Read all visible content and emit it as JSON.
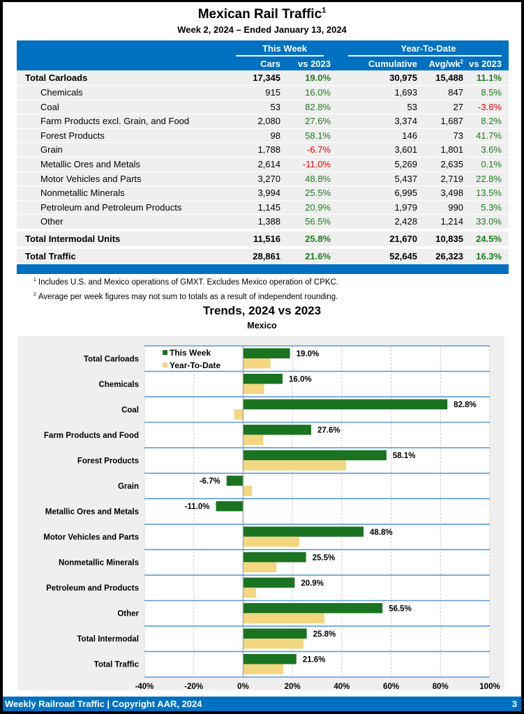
{
  "header": {
    "title": "Mexican Rail Traffic",
    "title_footnote": "1",
    "subtitle": "Week 2, 2024 – Ended January 13, 2024"
  },
  "table": {
    "group_headers": [
      "This Week",
      "Year-To-Date"
    ],
    "columns": [
      "Cars",
      "vs 2023",
      "Cumulative",
      "Avg/wk",
      "vs 2023"
    ],
    "avg_footnote": "2",
    "rows": [
      {
        "label": "Total Carloads",
        "type": "total",
        "cars": "17,345",
        "vs": "19.0%",
        "cum": "30,975",
        "avg": "15,488",
        "ytd": "11.1%"
      },
      {
        "label": "Chemicals",
        "type": "sub",
        "cars": "915",
        "vs": "16.0%",
        "cum": "1,693",
        "avg": "847",
        "ytd": "8.5%"
      },
      {
        "label": "Coal",
        "type": "sub",
        "cars": "53",
        "vs": "82.8%",
        "cum": "53",
        "avg": "27",
        "ytd": "-3.6%"
      },
      {
        "label": "Farm Products excl. Grain, and Food",
        "type": "sub",
        "cars": "2,080",
        "vs": "27.6%",
        "cum": "3,374",
        "avg": "1,687",
        "ytd": "8.2%"
      },
      {
        "label": "Forest Products",
        "type": "sub",
        "cars": "98",
        "vs": "58.1%",
        "cum": "146",
        "avg": "73",
        "ytd": "41.7%"
      },
      {
        "label": "Grain",
        "type": "sub",
        "cars": "1,788",
        "vs": "-6.7%",
        "cum": "3,601",
        "avg": "1,801",
        "ytd": "3.6%"
      },
      {
        "label": "Metallic Ores and Metals",
        "type": "sub",
        "cars": "2,614",
        "vs": "-11.0%",
        "cum": "5,269",
        "avg": "2,635",
        "ytd": "0.1%"
      },
      {
        "label": "Motor Vehicles and Parts",
        "type": "sub",
        "cars": "3,270",
        "vs": "48.8%",
        "cum": "5,437",
        "avg": "2,719",
        "ytd": "22.8%"
      },
      {
        "label": "Nonmetallic Minerals",
        "type": "sub",
        "cars": "3,994",
        "vs": "25.5%",
        "cum": "6,995",
        "avg": "3,498",
        "ytd": "13.5%"
      },
      {
        "label": "Petroleum and Petroleum Products",
        "type": "sub",
        "cars": "1,145",
        "vs": "20.9%",
        "cum": "1,979",
        "avg": "990",
        "ytd": "5.3%"
      },
      {
        "label": "Other",
        "type": "sub",
        "cars": "1,388",
        "vs": "56.5%",
        "cum": "2,428",
        "avg": "1,214",
        "ytd": "33.0%"
      },
      {
        "label": "Total Intermodal Units",
        "type": "total",
        "cars": "11,516",
        "vs": "25.8%",
        "cum": "21,670",
        "avg": "10,835",
        "ytd": "24.5%"
      },
      {
        "label": "Total Traffic",
        "type": "total",
        "cars": "28,861",
        "vs": "21.6%",
        "cum": "52,645",
        "avg": "26,323",
        "ytd": "16.3%"
      }
    ]
  },
  "notes": [
    {
      "mark": "1",
      "text": "Includes U.S. and Mexico operations of GMXT. Excludes Mexico operation of CPKC."
    },
    {
      "mark": "2",
      "text": "Average per week figures may not sum to totals as a result of independent rounding."
    }
  ],
  "colors": {
    "brand_blue": "#0070c0",
    "positive": "#1e7b1e",
    "negative": "#e00000",
    "this_week_bar": "#1a7320",
    "ytd_bar": "#f2d680",
    "row_line": "#5b9bd5"
  },
  "chart_data": {
    "type": "bar",
    "orientation": "horizontal",
    "title": "Trends, 2024 vs 2023",
    "subtitle": "Mexico",
    "categories": [
      "Total Carloads",
      "Chemicals",
      "Coal",
      "Farm Products and Food",
      "Forest Products",
      "Grain",
      "Metallic Ores and Metals",
      "Motor Vehicles and Parts",
      "Nonmetallic Minerals",
      "Petroleum and Products",
      "Other",
      "Total Intermodal",
      "Total Traffic"
    ],
    "series": [
      {
        "name": "This Week",
        "values": [
          19.0,
          16.0,
          82.8,
          27.6,
          58.1,
          -6.7,
          -11.0,
          48.8,
          25.5,
          20.9,
          56.5,
          25.8,
          21.6
        ],
        "labels": [
          "19.0%",
          "16.0%",
          "82.8%",
          "27.6%",
          "58.1%",
          "-6.7%",
          "-11.0%",
          "48.8%",
          "25.5%",
          "20.9%",
          "56.5%",
          "25.8%",
          "21.6%"
        ]
      },
      {
        "name": "Year-To-Date",
        "values": [
          11.1,
          8.5,
          -3.6,
          8.2,
          41.7,
          3.6,
          0.1,
          22.8,
          13.5,
          5.3,
          33.0,
          24.5,
          16.3
        ]
      }
    ],
    "xlim": [
      -40,
      100
    ],
    "xticks": [
      -40,
      -20,
      0,
      20,
      40,
      60,
      80,
      100
    ],
    "xtick_labels": [
      "-40%",
      "-20%",
      "0%",
      "20%",
      "40%",
      "60%",
      "80%",
      "100%"
    ],
    "xlabel": "",
    "ylabel": "",
    "grid": "vertical dashed",
    "legend": "top-left"
  },
  "footer": {
    "left": "Weekly Railroad Traffic | Copyright AAR, 2024",
    "page": "3"
  }
}
